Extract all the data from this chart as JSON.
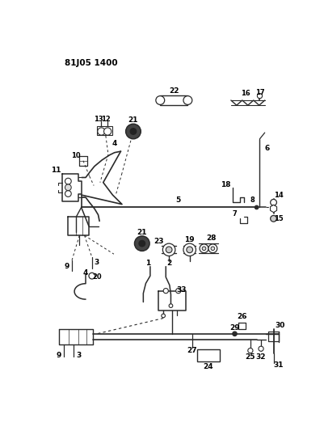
{
  "title": "81J05 1400",
  "bg_color": "#ffffff",
  "line_color": "#2a2a2a",
  "fig_width": 4.02,
  "fig_height": 5.33,
  "dpi": 100
}
